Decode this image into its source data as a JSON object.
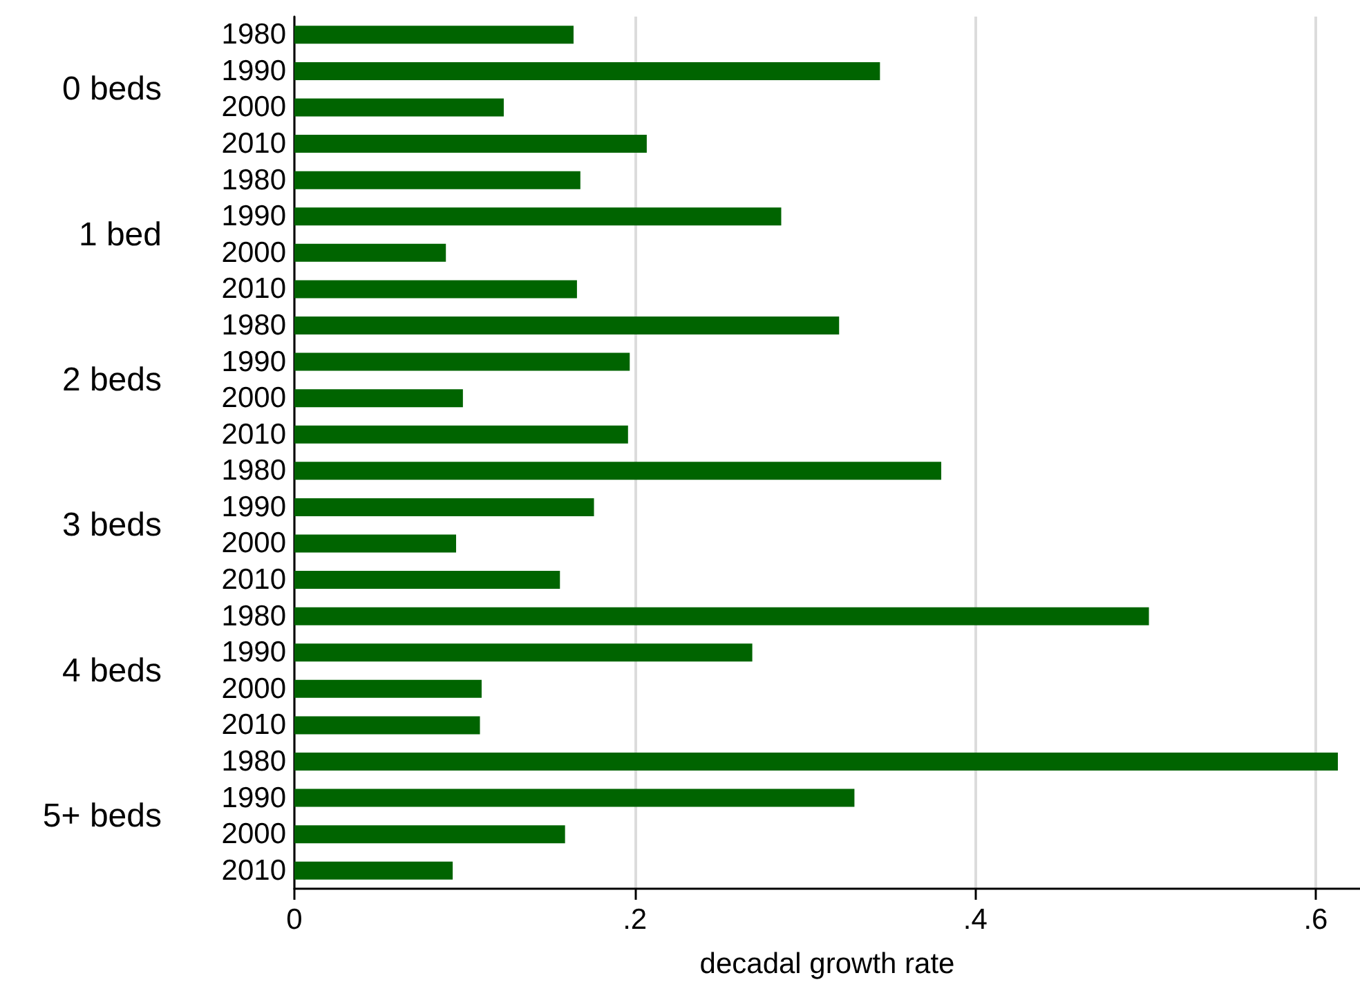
{
  "chart_data": {
    "type": "bar",
    "orientation": "horizontal",
    "xlabel": "decadal growth rate",
    "categories": [
      "1980",
      "1990",
      "2000",
      "2010",
      "1980",
      "1990",
      "2000",
      "2010",
      "1980",
      "1990",
      "2000",
      "2010",
      "1980",
      "1990",
      "2000",
      "2010",
      "1980",
      "1990",
      "2000",
      "2010",
      "1980",
      "1990",
      "2000",
      "2010"
    ],
    "values": [
      0.164,
      0.344,
      0.123,
      0.207,
      0.168,
      0.286,
      0.089,
      0.166,
      0.32,
      0.197,
      0.099,
      0.196,
      0.38,
      0.176,
      0.095,
      0.156,
      0.502,
      0.269,
      0.11,
      0.109,
      0.613,
      0.329,
      0.159,
      0.093
    ],
    "color": "#006400",
    "annotations": [
      "0 beds",
      "1 bed",
      "2 beds",
      "3 beds",
      "4 beds",
      "5+ beds"
    ],
    "xlim": [
      0,
      0.626
    ],
    "xticks": [
      {
        "value": 0,
        "label": "0"
      },
      {
        "value": 0.2,
        "label": ".2"
      },
      {
        "value": 0.4,
        "label": ".4"
      },
      {
        "value": 0.6,
        "label": ".6"
      }
    ],
    "grid": "x"
  }
}
